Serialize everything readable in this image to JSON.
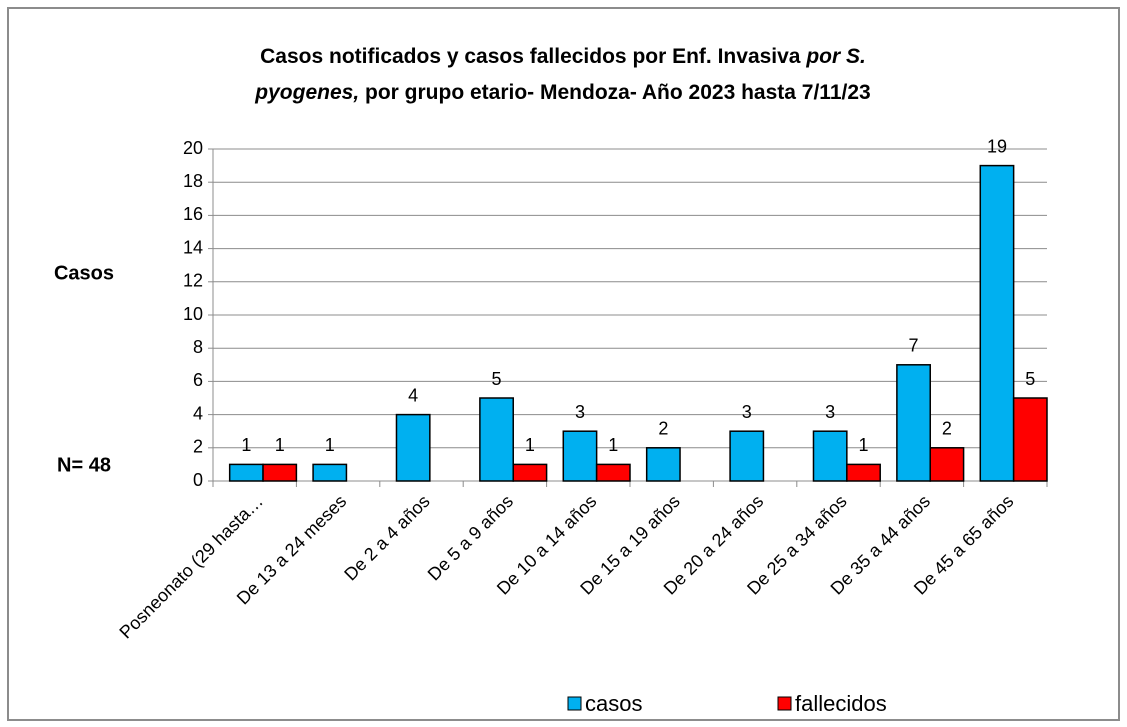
{
  "chart_data": {
    "type": "bar",
    "title": [
      [
        {
          "text": "Casos notificados  y casos  fallecidos  por Enf. Invasiva ",
          "italic": false
        },
        {
          "text": "por S.",
          "italic": true
        }
      ],
      [
        {
          "text": "pyogenes,",
          "italic": true
        },
        {
          "text": " por grupo etario- Mendoza-  Año 2023 hasta  7/11/23",
          "italic": false
        }
      ]
    ],
    "y_label": "Casos",
    "annotation": "N= 48",
    "categories": [
      "Posneonato (29 hasta…",
      "De 13 a 24 meses",
      "De 2 a 4 años",
      "De 5 a 9 años",
      "De 10 a 14 años",
      "De 15 a 19 años",
      "De 20 a 24 años",
      "De 25 a 34 años",
      "De 35 a 44 años",
      "De 45 a 65 años"
    ],
    "series": [
      {
        "name": "casos",
        "color": "#00b0f0",
        "values": [
          1,
          1,
          4,
          5,
          3,
          2,
          3,
          3,
          7,
          19
        ]
      },
      {
        "name": "fallecidos",
        "color": "#ff0000",
        "values": [
          1,
          null,
          null,
          1,
          1,
          null,
          null,
          1,
          2,
          5
        ]
      }
    ],
    "ylim": [
      0,
      20
    ],
    "yticks": [
      0,
      2,
      4,
      6,
      8,
      10,
      12,
      14,
      16,
      18,
      20
    ],
    "grid": true,
    "legend": "bottom"
  }
}
